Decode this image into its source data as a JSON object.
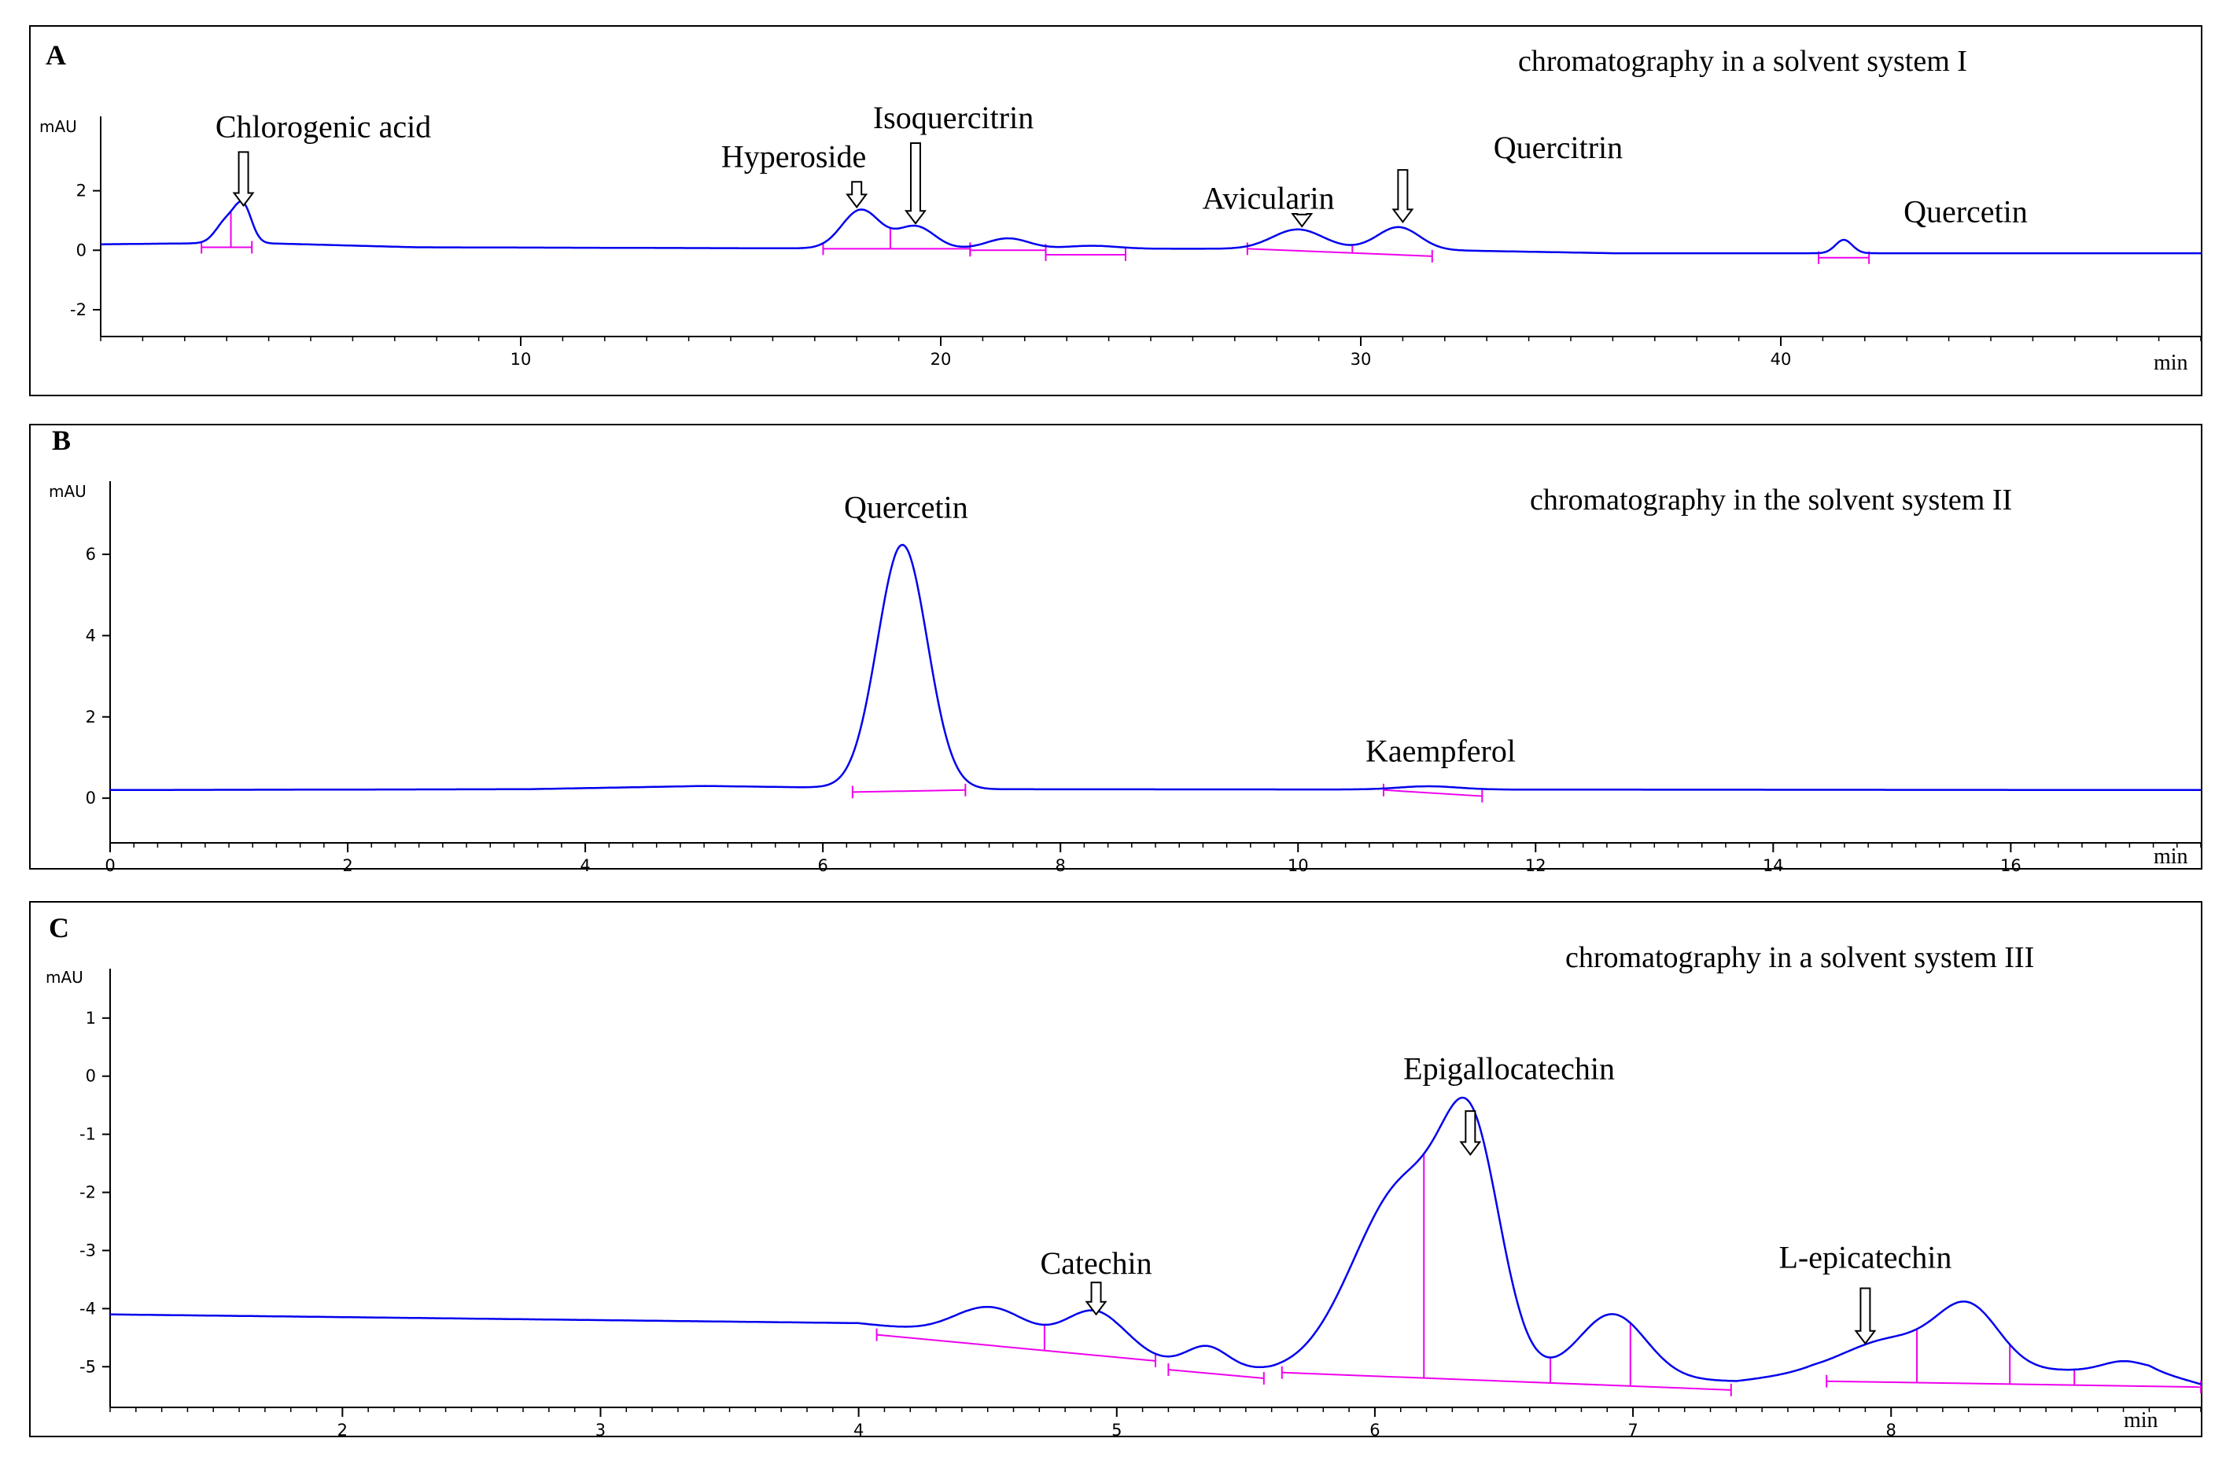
{
  "colors": {
    "trace": "#0000ee",
    "integration": "#ee00ee",
    "axis": "#000000",
    "frame": "#000000"
  },
  "chart_data": [
    {
      "type": "line",
      "panel_label": "A",
      "title": "chromatography in a solvent system I",
      "ylabel": "mAU",
      "xlabel": "min",
      "xlim": [
        0,
        50
      ],
      "ylim": [
        -2.9,
        4.5
      ],
      "xticks": [
        10,
        20,
        30,
        40
      ],
      "yticks": [
        2,
        0,
        -2
      ],
      "baseline": [
        [
          0,
          0.2
        ],
        [
          3.5,
          0.25
        ],
        [
          7.5,
          0.1
        ],
        [
          20,
          0.05
        ],
        [
          30,
          0.05
        ],
        [
          36,
          -0.1
        ],
        [
          50,
          -0.1
        ]
      ],
      "peaks": [
        {
          "rt": 3.0,
          "height": 0.75,
          "width": 0.25
        },
        {
          "rt": 3.4,
          "height": 1.15,
          "width": 0.2
        },
        {
          "rt": 18.1,
          "height": 1.3,
          "width": 0.45
        },
        {
          "rt": 19.4,
          "height": 0.75,
          "width": 0.45
        },
        {
          "rt": 21.6,
          "height": 0.35,
          "width": 0.5
        },
        {
          "rt": 23.6,
          "height": 0.1,
          "width": 0.6
        },
        {
          "rt": 28.5,
          "height": 0.65,
          "width": 0.6
        },
        {
          "rt": 30.9,
          "height": 0.75,
          "width": 0.5
        },
        {
          "rt": 41.5,
          "height": 0.45,
          "width": 0.2
        }
      ],
      "integration": [
        {
          "x0": 2.4,
          "x1": 3.6,
          "y0": 0.1,
          "y1": 0.1,
          "drops": [
            3.1
          ]
        },
        {
          "x0": 17.2,
          "x1": 20.7,
          "y0": 0.05,
          "y1": 0.05,
          "drops": [
            18.8
          ]
        },
        {
          "x0": 20.7,
          "x1": 22.5,
          "y0": 0.0,
          "y1": 0.0,
          "drops": []
        },
        {
          "x0": 22.5,
          "x1": 24.4,
          "y0": -0.15,
          "y1": -0.15,
          "drops": []
        },
        {
          "x0": 27.3,
          "x1": 31.7,
          "y0": 0.05,
          "y1": -0.2,
          "drops": [
            29.8
          ]
        },
        {
          "x0": 40.9,
          "x1": 42.1,
          "y0": -0.25,
          "y1": -0.25,
          "drops": []
        }
      ],
      "annotations": [
        {
          "text": "Chlorogenic acid",
          "x": 5.3,
          "y": 3.8,
          "arrow_x": 3.4,
          "arrow_from": 3.3,
          "arrow_to": 1.5
        },
        {
          "text": "Hyperoside",
          "x": 16.5,
          "y": 2.8,
          "arrow_x": 18.0,
          "arrow_from": 2.3,
          "arrow_to": 1.45
        },
        {
          "text": "Isoquercitrin",
          "x": 20.3,
          "y": 4.1,
          "arrow_x": 19.4,
          "arrow_from": 3.6,
          "arrow_to": 0.9
        },
        {
          "text": "Avicularin",
          "x": 27.8,
          "y": 1.4,
          "arrow_x": 28.6,
          "arrow_from": 1.2,
          "arrow_to": 0.8
        },
        {
          "text": "Quercitrin",
          "x": 34.7,
          "y": 3.1,
          "arrow_x": 31.0,
          "arrow_from": 2.7,
          "arrow_to": 0.95
        },
        {
          "text": "Quercetin",
          "x": 44.4,
          "y": 0.95,
          "arrow_x": null,
          "arrow_from": null,
          "arrow_to": null
        }
      ]
    },
    {
      "type": "line",
      "panel_label": "B",
      "title": "chromatography in the solvent system II",
      "ylabel": "mAU",
      "xlabel": "min",
      "xlim": [
        0,
        17.6
      ],
      "ylim": [
        -1.1,
        7.8
      ],
      "xticks": [
        0,
        2,
        4,
        6,
        8,
        10,
        12,
        14,
        16
      ],
      "yticks": [
        6,
        4,
        2,
        0
      ],
      "baseline": [
        [
          0,
          0.2
        ],
        [
          3.5,
          0.22
        ],
        [
          5,
          0.3
        ],
        [
          6.3,
          0.25
        ],
        [
          7,
          0.22
        ],
        [
          17.6,
          0.2
        ]
      ],
      "peaks": [
        {
          "rt": 6.67,
          "height": 6.0,
          "width": 0.21
        },
        {
          "rt": 11.1,
          "height": 0.08,
          "width": 0.25
        }
      ],
      "integration": [
        {
          "x0": 6.25,
          "x1": 7.2,
          "y0": 0.15,
          "y1": 0.2,
          "drops": []
        },
        {
          "x0": 10.72,
          "x1": 11.55,
          "y0": 0.2,
          "y1": 0.05,
          "drops": []
        }
      ],
      "annotations": [
        {
          "text": "Quercetin",
          "x": 6.7,
          "y": 6.9,
          "arrow_x": null,
          "arrow_from": null,
          "arrow_to": null
        },
        {
          "text": "Kaempferol",
          "x": 11.2,
          "y": 0.9,
          "arrow_x": null,
          "arrow_from": null,
          "arrow_to": null
        }
      ]
    },
    {
      "type": "line",
      "panel_label": "C",
      "title": "chromatography in a solvent system III",
      "ylabel": "mAU",
      "xlabel": "min",
      "xlim": [
        1.1,
        9.2
      ],
      "ylim": [
        -5.7,
        1.85
      ],
      "xticks": [
        2,
        3,
        4,
        5,
        6,
        7,
        8
      ],
      "yticks": [
        1,
        0,
        -1,
        -2,
        -3,
        -4,
        -5
      ],
      "baseline": [
        [
          1.1,
          -4.1
        ],
        [
          4.0,
          -4.25
        ],
        [
          4.4,
          -4.45
        ],
        [
          5.0,
          -4.85
        ],
        [
          5.6,
          -5.1
        ],
        [
          6.0,
          -5.15
        ],
        [
          7.0,
          -5.2
        ],
        [
          7.4,
          -5.25
        ],
        [
          7.7,
          -5.1
        ],
        [
          9.0,
          -5.05
        ],
        [
          9.2,
          -5.3
        ]
      ],
      "peaks": [
        {
          "rt": 4.52,
          "height": 0.55,
          "width": 0.14
        },
        {
          "rt": 4.92,
          "height": 0.75,
          "width": 0.12
        },
        {
          "rt": 5.35,
          "height": 0.35,
          "width": 0.08
        },
        {
          "rt": 6.12,
          "height": 3.3,
          "width": 0.2
        },
        {
          "rt": 6.38,
          "height": 3.2,
          "width": 0.11
        },
        {
          "rt": 6.92,
          "height": 1.1,
          "width": 0.13
        },
        {
          "rt": 8.0,
          "height": 0.55,
          "width": 0.18
        },
        {
          "rt": 8.3,
          "height": 1.05,
          "width": 0.12
        },
        {
          "rt": 8.9,
          "height": 0.15,
          "width": 0.08
        }
      ],
      "integration": [
        {
          "x0": 4.07,
          "x1": 5.15,
          "y0": -4.45,
          "y1": -4.9,
          "drops": [
            4.72
          ]
        },
        {
          "x0": 5.2,
          "x1": 5.57,
          "y0": -5.05,
          "y1": -5.2,
          "drops": []
        },
        {
          "x0": 5.64,
          "x1": 7.38,
          "y0": -5.1,
          "y1": -5.4,
          "drops": [
            6.19,
            6.68,
            6.99
          ]
        },
        {
          "x0": 7.75,
          "x1": 9.2,
          "y0": -5.25,
          "y1": -5.35,
          "drops": [
            8.1,
            8.46,
            8.71
          ]
        }
      ],
      "annotations": [
        {
          "text": "Catechin",
          "x": 4.92,
          "y": -3.4,
          "arrow_x": 4.92,
          "arrow_from": -3.55,
          "arrow_to": -4.1
        },
        {
          "text": "Epigallocatechin",
          "x": 6.52,
          "y": -0.05,
          "arrow_x": 6.37,
          "arrow_from": -0.6,
          "arrow_to": -1.35
        },
        {
          "text": "L-epicatechin",
          "x": 7.9,
          "y": -3.3,
          "arrow_x": 7.9,
          "arrow_from": -3.65,
          "arrow_to": -4.6
        }
      ]
    }
  ]
}
